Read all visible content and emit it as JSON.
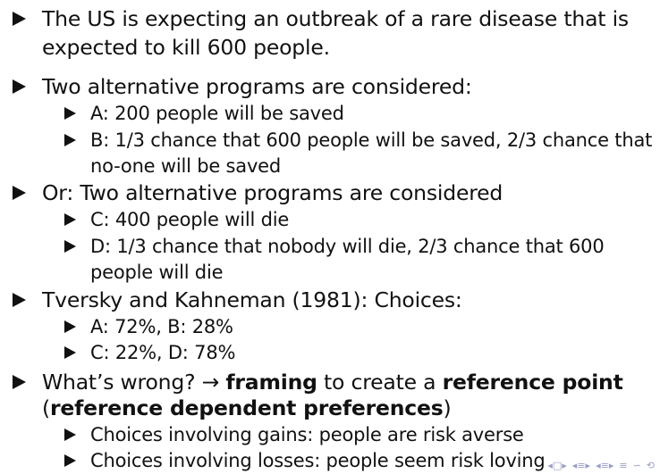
{
  "items": [
    {
      "level": 1,
      "lines": [
        "The US is expecting an outbreak of a rare disease that is",
        "expected to kill 600 people."
      ]
    },
    {
      "level": 1,
      "lines": [
        "Two alternative programs are considered:"
      ]
    },
    {
      "level": 2,
      "lines": [
        "A: 200 people will be saved"
      ]
    },
    {
      "level": 2,
      "lines": [
        "B: 1/3 chance that 600 people will be saved, 2/3 chance that",
        "no-one will be saved"
      ]
    },
    {
      "level": 1,
      "lines": [
        "Or:  Two alternative programs are considered"
      ]
    },
    {
      "level": 2,
      "lines": [
        "C: 400 people will die"
      ]
    },
    {
      "level": 2,
      "lines": [
        "D: 1/3 chance that nobody will die, 2/3 chance that 600",
        "people will die"
      ]
    },
    {
      "level": 1,
      "lines": [
        "Tversky and Kahneman (1981):  Choices:"
      ]
    },
    {
      "level": 2,
      "lines": [
        "A: 72%, B: 28%"
      ]
    },
    {
      "level": 2,
      "lines": [
        "C: 22%, D: 78%"
      ]
    },
    {
      "level": 1,
      "rich": true
    },
    {
      "level": 2,
      "lines": [
        "Choices involving gains: people are risk averse"
      ]
    },
    {
      "level": 2,
      "lines": [
        "Choices involving losses: people seem risk loving"
      ]
    }
  ],
  "framing_item": {
    "prefix": "What’s wrong?  → ",
    "bold1": "framing",
    "middle": " to create a ",
    "bold2": "reference point",
    "open_paren": "(",
    "bold3": "reference dependent preferences",
    "close_paren": ")"
  },
  "nav": {
    "icons": [
      "frame-nav-icon",
      "section-nav-icon",
      "subsection-nav-icon",
      "toc-icon",
      "search-icon"
    ],
    "glyphs": [
      "◂",
      "□",
      "▸",
      "◂",
      "≡",
      "▸",
      "◂",
      "≡",
      "▸",
      "≡",
      "∽",
      "⟲"
    ]
  }
}
